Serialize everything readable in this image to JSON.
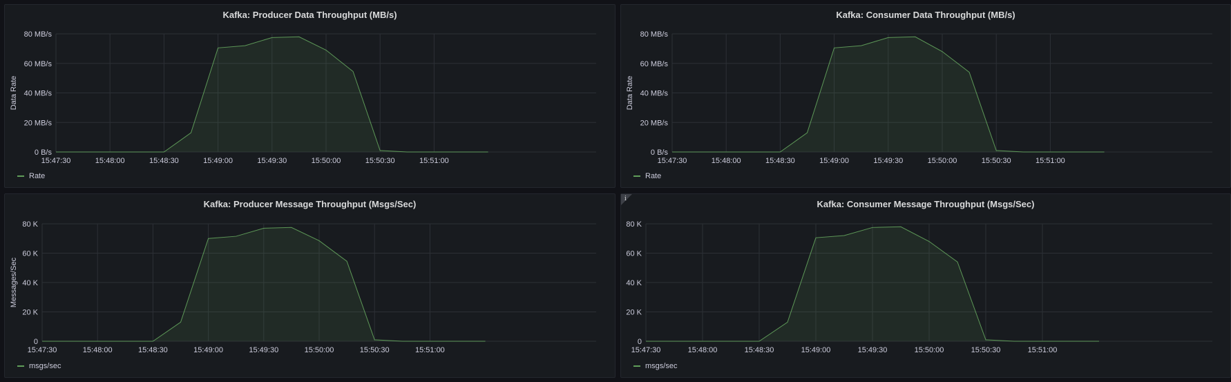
{
  "colors": {
    "series": "#73bf69",
    "grid": "#2c3036",
    "text": "#ccccdc",
    "background": "#111217",
    "panel": "#181b1f"
  },
  "chart_data": [
    {
      "id": "producer-data",
      "type": "area",
      "title": "Kafka: Producer Data Throughput (MB/s)",
      "ylabel": "Data Rate",
      "xlabel": "",
      "x_ticks": [
        "15:47:30",
        "15:48:00",
        "15:48:30",
        "15:49:00",
        "15:49:30",
        "15:50:00",
        "15:50:30",
        "15:51:00"
      ],
      "y_ticks": [
        "0 B/s",
        "20 MB/s",
        "40 MB/s",
        "60 MB/s",
        "80 MB/s"
      ],
      "ylim": [
        0,
        80
      ],
      "xlim": [
        "15:47:30",
        "15:52:30"
      ],
      "grid": true,
      "legend_position": "bottom-left",
      "series": [
        {
          "name": "Rate",
          "x": [
            "15:47:30",
            "15:47:45",
            "15:48:00",
            "15:48:15",
            "15:48:30",
            "15:48:45",
            "15:49:00",
            "15:49:15",
            "15:49:30",
            "15:49:45",
            "15:50:00",
            "15:50:15",
            "15:50:30",
            "15:50:45",
            "15:51:00",
            "15:51:15",
            "15:51:30"
          ],
          "values": [
            0,
            0,
            0,
            0,
            0,
            13,
            70.5,
            72,
            77.5,
            78,
            69,
            54.5,
            1,
            0,
            0,
            0,
            0
          ]
        }
      ]
    },
    {
      "id": "consumer-data",
      "type": "area",
      "title": "Kafka: Consumer Data Throughput (MB/s)",
      "ylabel": "Data Rate",
      "xlabel": "",
      "x_ticks": [
        "15:47:30",
        "15:48:00",
        "15:48:30",
        "15:49:00",
        "15:49:30",
        "15:50:00",
        "15:50:30",
        "15:51:00"
      ],
      "y_ticks": [
        "0 B/s",
        "20 MB/s",
        "40 MB/s",
        "60 MB/s",
        "80 MB/s"
      ],
      "ylim": [
        0,
        80
      ],
      "xlim": [
        "15:47:30",
        "15:52:30"
      ],
      "grid": true,
      "legend_position": "bottom-left",
      "series": [
        {
          "name": "Rate",
          "x": [
            "15:47:30",
            "15:47:45",
            "15:48:00",
            "15:48:15",
            "15:48:30",
            "15:48:45",
            "15:49:00",
            "15:49:15",
            "15:49:30",
            "15:49:45",
            "15:50:00",
            "15:50:15",
            "15:50:30",
            "15:50:45",
            "15:51:00",
            "15:51:15",
            "15:51:30"
          ],
          "values": [
            0,
            0,
            0,
            0,
            0,
            13,
            70.5,
            72,
            77.5,
            78,
            68,
            54,
            1,
            0,
            0,
            0,
            0
          ]
        }
      ]
    },
    {
      "id": "producer-msgs",
      "type": "area",
      "title": "Kafka: Producer Message Throughput (Msgs/Sec)",
      "ylabel": "Messages/Sec",
      "xlabel": "",
      "x_ticks": [
        "15:47:30",
        "15:48:00",
        "15:48:30",
        "15:49:00",
        "15:49:30",
        "15:50:00",
        "15:50:30",
        "15:51:00"
      ],
      "y_ticks": [
        "0",
        "20 K",
        "40 K",
        "60 K",
        "80 K"
      ],
      "ylim": [
        0,
        80000
      ],
      "xlim": [
        "15:47:30",
        "15:52:30"
      ],
      "grid": true,
      "legend_position": "bottom-left",
      "series": [
        {
          "name": "msgs/sec",
          "x": [
            "15:47:30",
            "15:47:45",
            "15:48:00",
            "15:48:15",
            "15:48:30",
            "15:48:45",
            "15:49:00",
            "15:49:15",
            "15:49:30",
            "15:49:45",
            "15:50:00",
            "15:50:15",
            "15:50:30",
            "15:50:45",
            "15:51:00",
            "15:51:15",
            "15:51:30"
          ],
          "values": [
            0,
            0,
            0,
            0,
            0,
            13000,
            70000,
            71500,
            77000,
            77500,
            68500,
            54500,
            1000,
            0,
            0,
            0,
            0
          ]
        }
      ]
    },
    {
      "id": "consumer-msgs",
      "type": "area",
      "title": "Kafka: Consumer Message Throughput (Msgs/Sec)",
      "ylabel": "",
      "xlabel": "",
      "x_ticks": [
        "15:47:30",
        "15:48:00",
        "15:48:30",
        "15:49:00",
        "15:49:30",
        "15:50:00",
        "15:50:30",
        "15:51:00"
      ],
      "y_ticks": [
        "0",
        "20 K",
        "40 K",
        "60 K",
        "80 K"
      ],
      "ylim": [
        0,
        80000
      ],
      "xlim": [
        "15:47:30",
        "15:52:30"
      ],
      "grid": true,
      "legend_position": "bottom-left",
      "info_icon": "i",
      "series": [
        {
          "name": "msgs/sec",
          "x": [
            "15:47:30",
            "15:47:45",
            "15:48:00",
            "15:48:15",
            "15:48:30",
            "15:48:45",
            "15:49:00",
            "15:49:15",
            "15:49:30",
            "15:49:45",
            "15:50:00",
            "15:50:15",
            "15:50:30",
            "15:50:45",
            "15:51:00",
            "15:51:15",
            "15:51:30"
          ],
          "values": [
            0,
            0,
            0,
            0,
            0,
            13000,
            70500,
            72000,
            77500,
            78000,
            68000,
            54000,
            1000,
            0,
            0,
            0,
            0
          ]
        }
      ]
    }
  ]
}
